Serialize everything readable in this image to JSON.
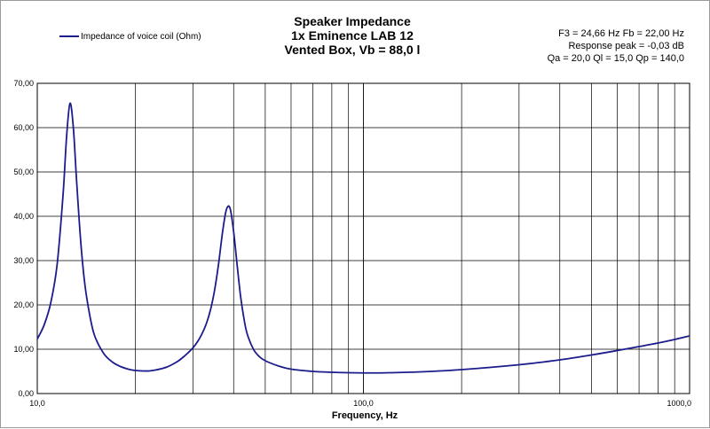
{
  "chart_data": {
    "type": "line",
    "title": "Speaker Impedance",
    "subtitle_lines": [
      "1x Eminence LAB 12",
      "Vented Box, Vb = 88,0 l"
    ],
    "info_lines": [
      "F3 = 24,66 Hz  Fb = 22,00 Hz",
      "Response peak = -0,03 dB",
      "Qa = 20,0  Ql = 15,0  Qp = 140,0"
    ],
    "xlabel": "Frequency,  Hz",
    "ylabel": "",
    "x_scale": "log",
    "xlim": [
      10,
      1000
    ],
    "ylim": [
      0,
      70
    ],
    "x_tick_labels": [
      "10,0",
      "100,0",
      "1000,0"
    ],
    "y_tick_labels": [
      "0,00",
      "10,00",
      "20,00",
      "30,00",
      "40,00",
      "50,00",
      "60,00",
      "70,00"
    ],
    "grid": true,
    "legend_position": "top-left",
    "series": [
      {
        "name": "Impedance of voice coil (Ohm)",
        "color": "#1c1c8c",
        "x": [
          10,
          10.5,
          11,
          11.5,
          12,
          12.3,
          12.6,
          12.9,
          13.2,
          13.6,
          14,
          14.5,
          15,
          16,
          17,
          18,
          19,
          20,
          21,
          22,
          23,
          24,
          25,
          26,
          27,
          28,
          29,
          30,
          31,
          32,
          33,
          34,
          35,
          36,
          37,
          38,
          39,
          40,
          41,
          42,
          43,
          44,
          46,
          48,
          50,
          55,
          60,
          70,
          80,
          90,
          100,
          110,
          120,
          150,
          200,
          300,
          400,
          500,
          600,
          700,
          800,
          900,
          1000
        ],
        "y": [
          12.3,
          15.5,
          20.5,
          29.0,
          45.0,
          58.0,
          65.5,
          60.0,
          48.0,
          34.0,
          24.5,
          17.5,
          13.0,
          9.0,
          7.1,
          6.1,
          5.5,
          5.2,
          5.1,
          5.1,
          5.3,
          5.6,
          6.0,
          6.6,
          7.3,
          8.2,
          9.2,
          10.3,
          11.7,
          13.5,
          15.8,
          19.0,
          23.5,
          29.5,
          36.5,
          41.5,
          41.8,
          36.5,
          29.0,
          22.0,
          17.0,
          13.5,
          10.0,
          8.3,
          7.4,
          6.2,
          5.5,
          5.0,
          4.8,
          4.7,
          4.65,
          4.65,
          4.7,
          4.9,
          5.4,
          6.5,
          7.6,
          8.7,
          9.7,
          10.6,
          11.4,
          12.2,
          13.0
        ]
      }
    ]
  }
}
